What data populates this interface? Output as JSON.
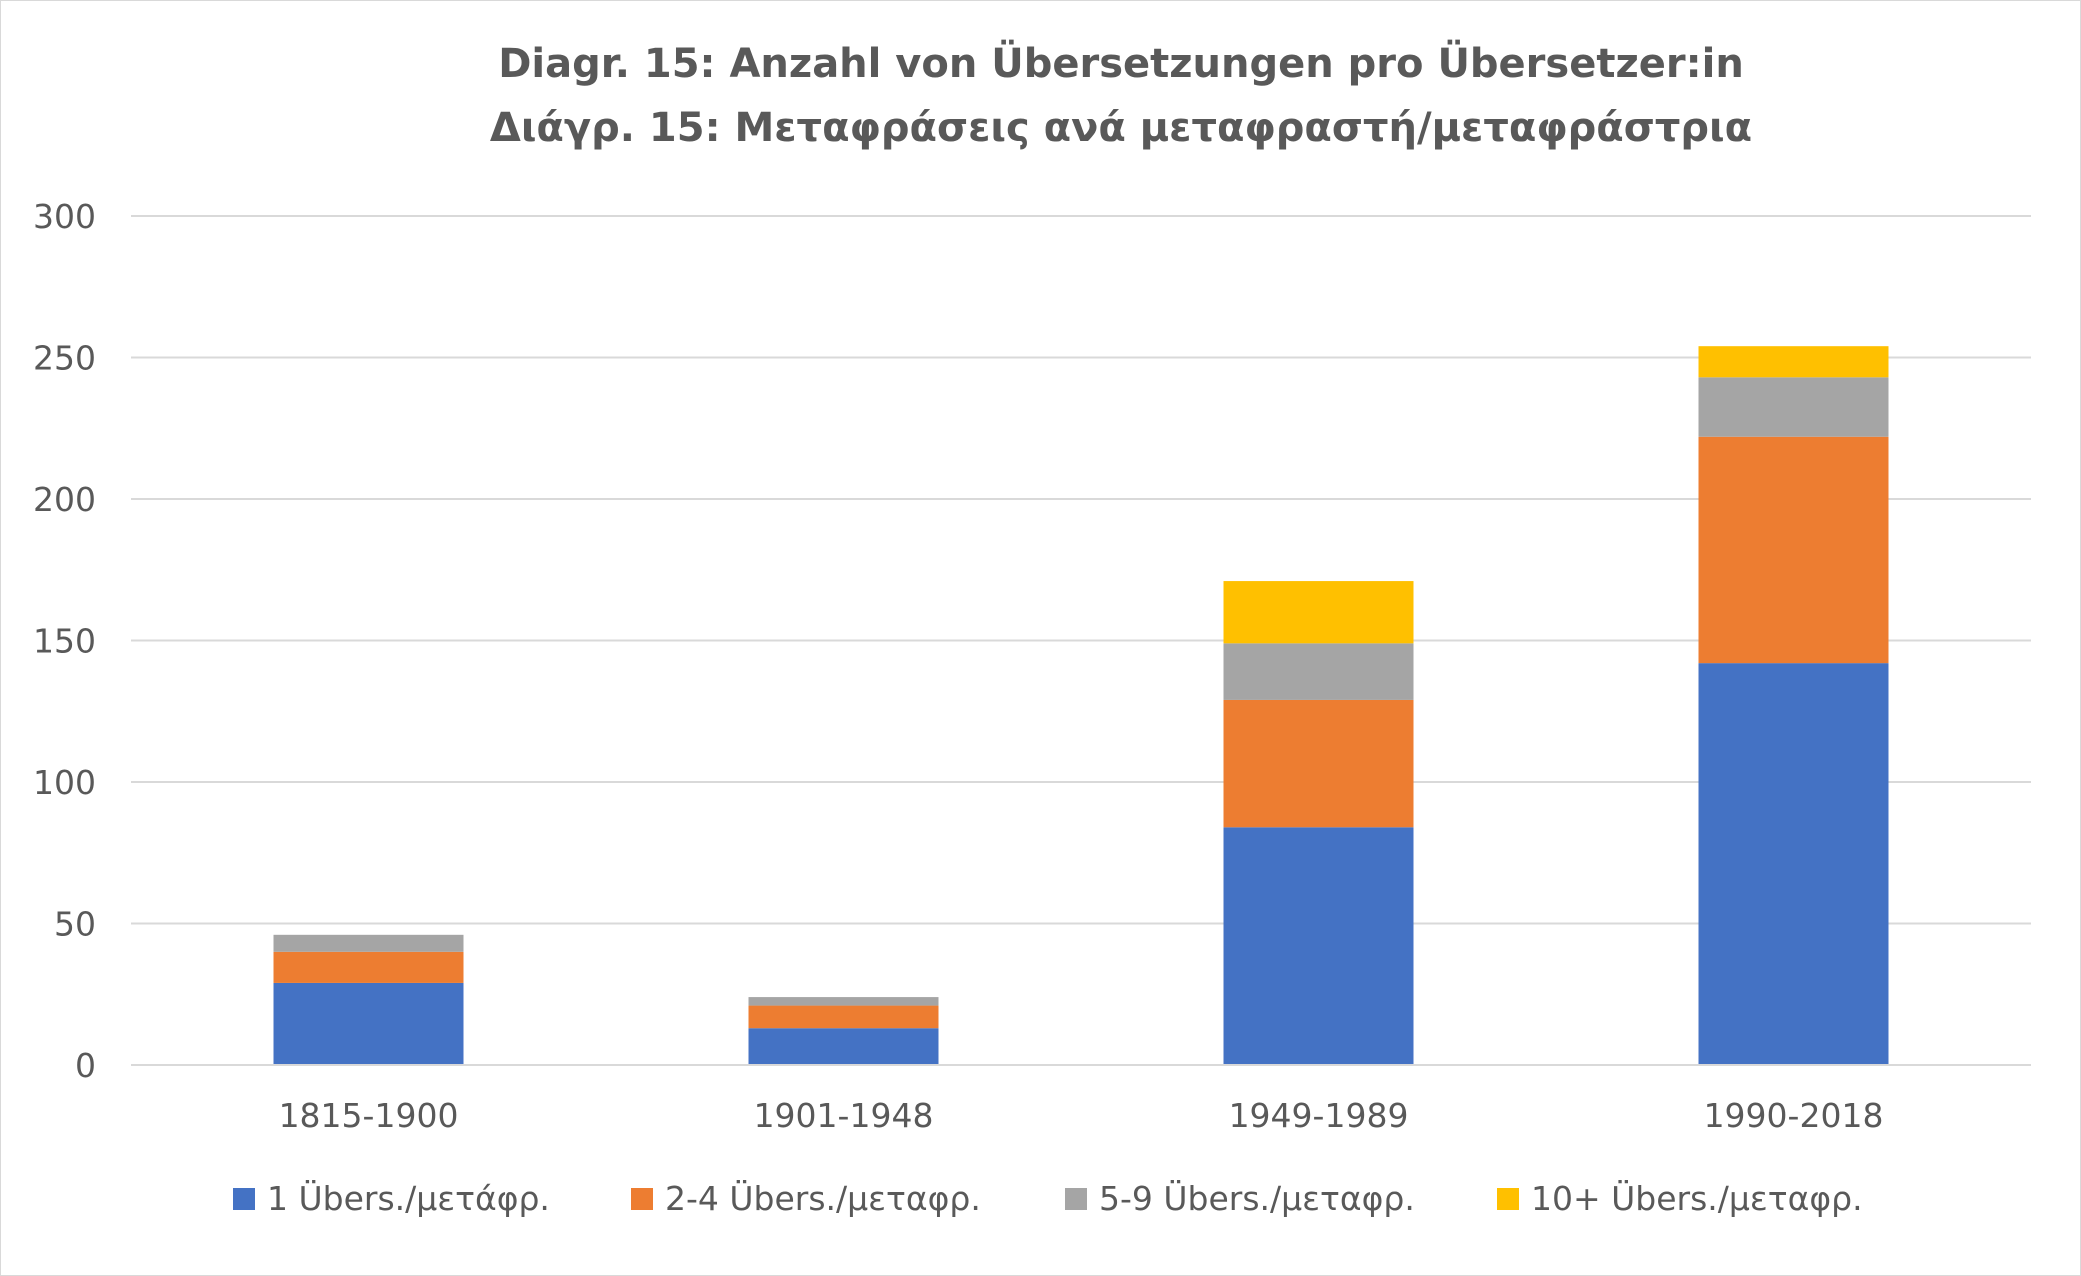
{
  "chart_data": {
    "type": "bar",
    "stacked": true,
    "title": "Diagr. 15: Anzahl von Übersetzungen pro Übersetzer:in",
    "subtitle": "Διάγρ. 15: Μεταφράσεις ανά μεταφραστή/μεταφράστρια",
    "categories": [
      "1815-1900",
      "1901-1948",
      "1949-1989",
      "1990-2018"
    ],
    "series": [
      {
        "name": "1 Übers./μετάφρ.",
        "color": "#4472C4",
        "values": [
          29,
          13,
          84,
          142
        ]
      },
      {
        "name": "2-4 Übers./μεταφρ.",
        "color": "#ED7D31",
        "values": [
          11,
          8,
          45,
          80
        ]
      },
      {
        "name": "5-9 Übers./μεταφρ.",
        "color": "#A5A5A5",
        "values": [
          6,
          3,
          20,
          21
        ]
      },
      {
        "name": "10+ Übers./μεταφρ.",
        "color": "#FFC000",
        "values": [
          0,
          0,
          22,
          11
        ]
      }
    ],
    "ylim": [
      0,
      300
    ],
    "yticks": [
      0,
      50,
      100,
      150,
      200,
      250,
      300
    ],
    "xlabel": "",
    "ylabel": "",
    "grid": true,
    "legend_position": "bottom"
  }
}
